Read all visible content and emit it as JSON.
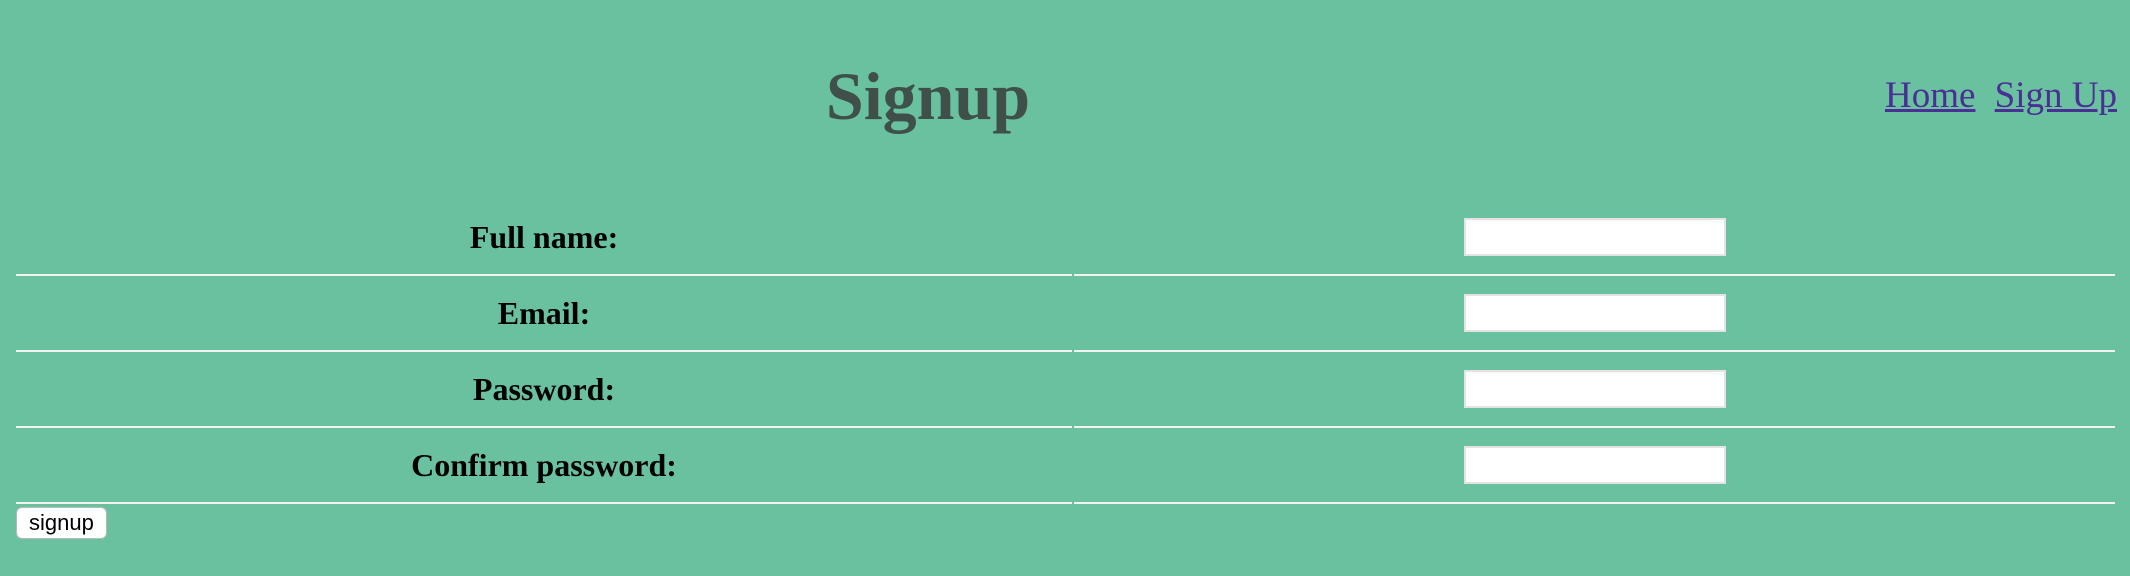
{
  "header": {
    "title": "Signup",
    "nav": [
      {
        "label": "Home"
      },
      {
        "label": "Sign Up"
      }
    ]
  },
  "form": {
    "fields": [
      {
        "label": "Full name:",
        "value": ""
      },
      {
        "label": "Email:",
        "value": ""
      },
      {
        "label": "Password:",
        "value": ""
      },
      {
        "label": "Confirm password:",
        "value": ""
      }
    ],
    "submit_label": "signup"
  },
  "colors": {
    "background": "#6ac19f",
    "title": "#3f4f4a",
    "link": "#4a2f95",
    "divider": "#f2f2f2"
  }
}
